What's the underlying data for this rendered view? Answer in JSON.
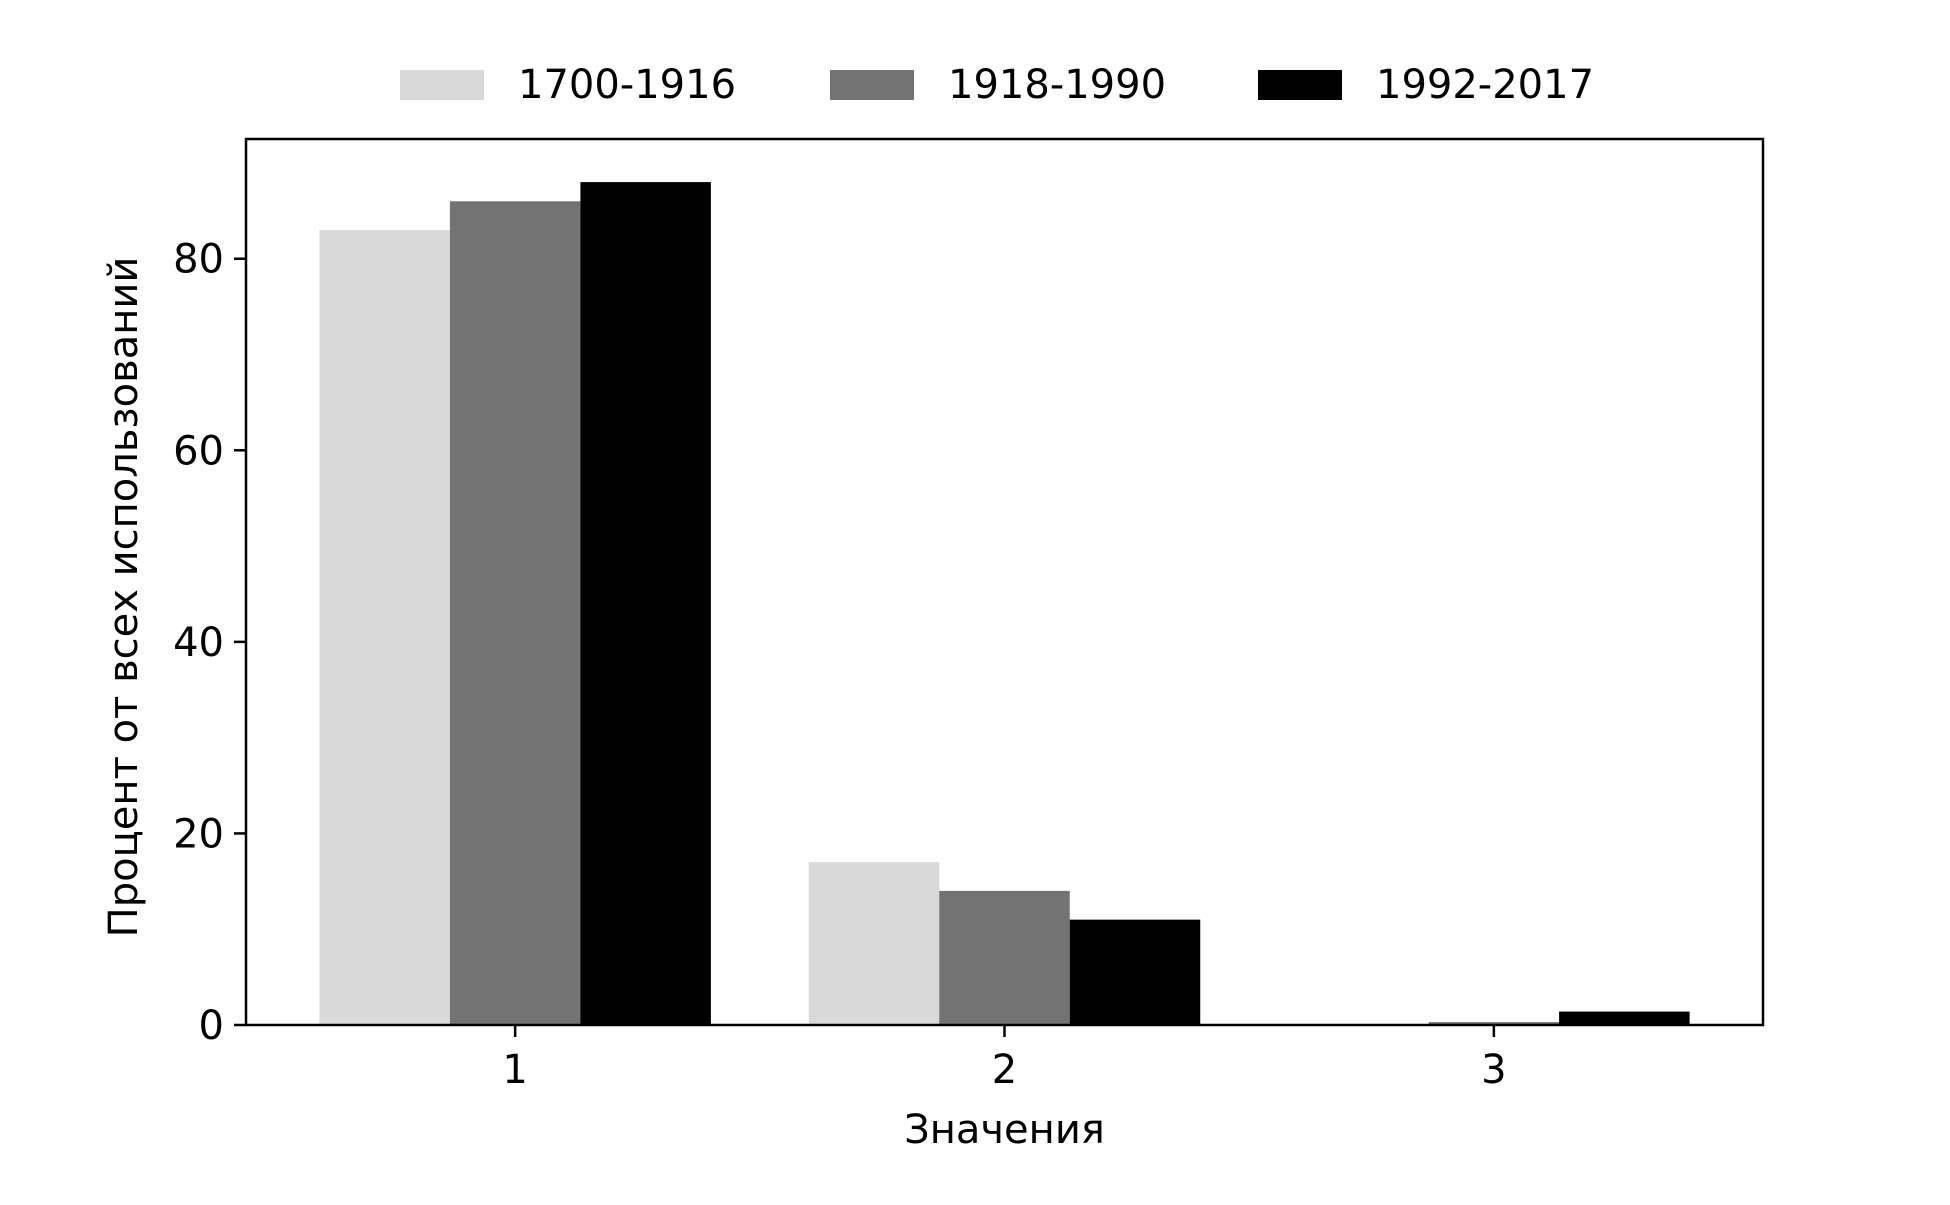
{
  "chart_data": {
    "type": "bar",
    "categories": [
      "1",
      "2",
      "3"
    ],
    "series": [
      {
        "name": "1700-1916",
        "values": [
          83.0,
          17.0,
          0.1
        ],
        "color": "#d9d9d9"
      },
      {
        "name": "1918-1990",
        "values": [
          86.0,
          14.0,
          0.3
        ],
        "color": "#737373"
      },
      {
        "name": "1992-2017",
        "values": [
          88.0,
          11.0,
          1.4
        ],
        "color": "#000000"
      }
    ],
    "xlabel": "Значения",
    "ylabel": "Процент от всех использований",
    "ylim": [
      0,
      92.5
    ],
    "yticks": [
      0,
      20,
      40,
      60,
      80
    ],
    "ytick_labels": [
      "0",
      "20",
      "40",
      "60",
      "80"
    ],
    "legend_position": "top-center",
    "grid": false
  }
}
